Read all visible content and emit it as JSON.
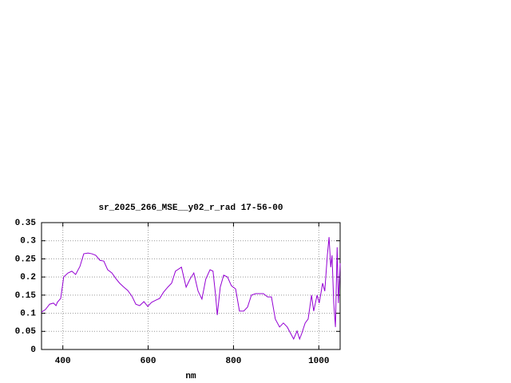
{
  "chart_data": {
    "type": "line",
    "title": "sr_2025_266_MSE__y02_r_rad 17-56-00",
    "x_label": "nm",
    "xlim": [
      350,
      1050
    ],
    "xticks": [
      400,
      600,
      800,
      1000
    ],
    "ylim": [
      0,
      0.35
    ],
    "yticks": [
      0,
      0.05,
      0.1,
      0.15,
      0.2,
      0.25,
      0.3,
      0.35
    ],
    "grid": true,
    "series": [
      {
        "color": "#9400d3",
        "x": [
          350,
          359,
          369,
          378,
          384,
          387,
          395,
          402,
          412,
          421,
          430,
          440,
          449,
          459,
          468,
          477,
          487,
          496,
          505,
          515,
          524,
          533,
          543,
          552,
          562,
          571,
          580,
          590,
          599,
          608,
          618,
          627,
          636,
          646,
          655,
          664,
          678,
          689,
          698,
          707,
          717,
          726,
          735,
          745,
          752,
          758,
          762,
          769,
          777,
          786,
          795,
          805,
          814,
          824,
          833,
          842,
          852,
          870,
          880,
          889,
          898,
          908,
          917,
          926,
          936,
          941,
          949,
          955,
          960,
          968,
          975,
          983,
          988,
          996,
          1001,
          1009,
          1014,
          1020,
          1024,
          1028,
          1031,
          1035,
          1039,
          1043,
          1046,
          1050
        ],
        "values": [
          0.103,
          0.11,
          0.125,
          0.128,
          0.121,
          0.13,
          0.141,
          0.2,
          0.211,
          0.216,
          0.207,
          0.229,
          0.264,
          0.266,
          0.264,
          0.26,
          0.246,
          0.244,
          0.22,
          0.211,
          0.196,
          0.183,
          0.172,
          0.163,
          0.147,
          0.125,
          0.121,
          0.132,
          0.119,
          0.13,
          0.136,
          0.141,
          0.158,
          0.172,
          0.183,
          0.216,
          0.227,
          0.172,
          0.194,
          0.211,
          0.161,
          0.139,
          0.194,
          0.22,
          0.216,
          0.15,
          0.095,
          0.172,
          0.205,
          0.2,
          0.176,
          0.167,
          0.106,
          0.106,
          0.117,
          0.15,
          0.154,
          0.154,
          0.145,
          0.145,
          0.084,
          0.062,
          0.073,
          0.062,
          0.04,
          0.029,
          0.051,
          0.029,
          0.044,
          0.073,
          0.084,
          0.15,
          0.106,
          0.15,
          0.128,
          0.183,
          0.161,
          0.26,
          0.31,
          0.227,
          0.26,
          0.128,
          0.062,
          0.282,
          0.128,
          0.238
        ]
      }
    ]
  }
}
